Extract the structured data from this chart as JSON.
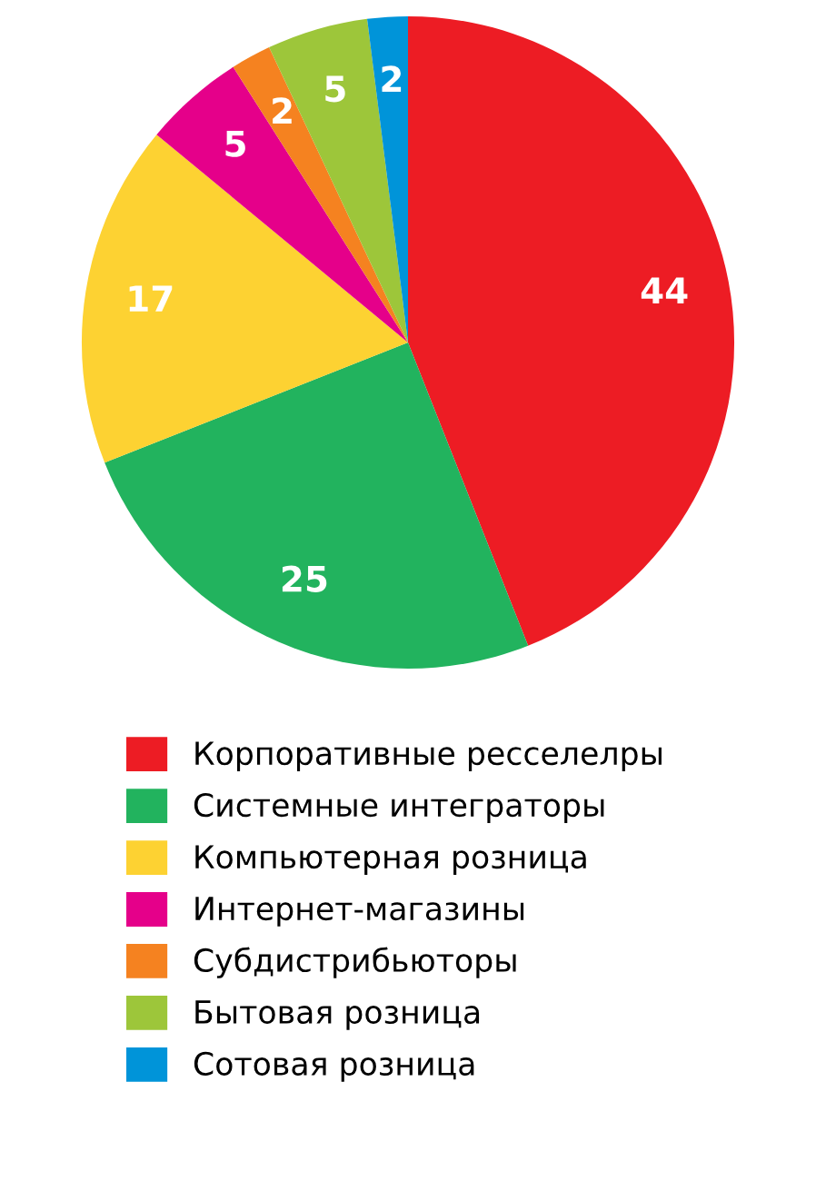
{
  "chart_data": {
    "type": "pie",
    "categories": [
      "Корпоративные ресселелры",
      "Системные интеграторы",
      "Компьютерная розница",
      "Интернет-магазины",
      "Субдистрибьюторы",
      "Бытовая розница",
      "Сотовая розница"
    ],
    "values": [
      44,
      25,
      17,
      5,
      2,
      5,
      2
    ],
    "colors": [
      "#ed1c24",
      "#22b35e",
      "#fdd232",
      "#e5008a",
      "#f58220",
      "#9dc63a",
      "#0094d9"
    ],
    "data_labels": true,
    "legend": "bottom"
  }
}
